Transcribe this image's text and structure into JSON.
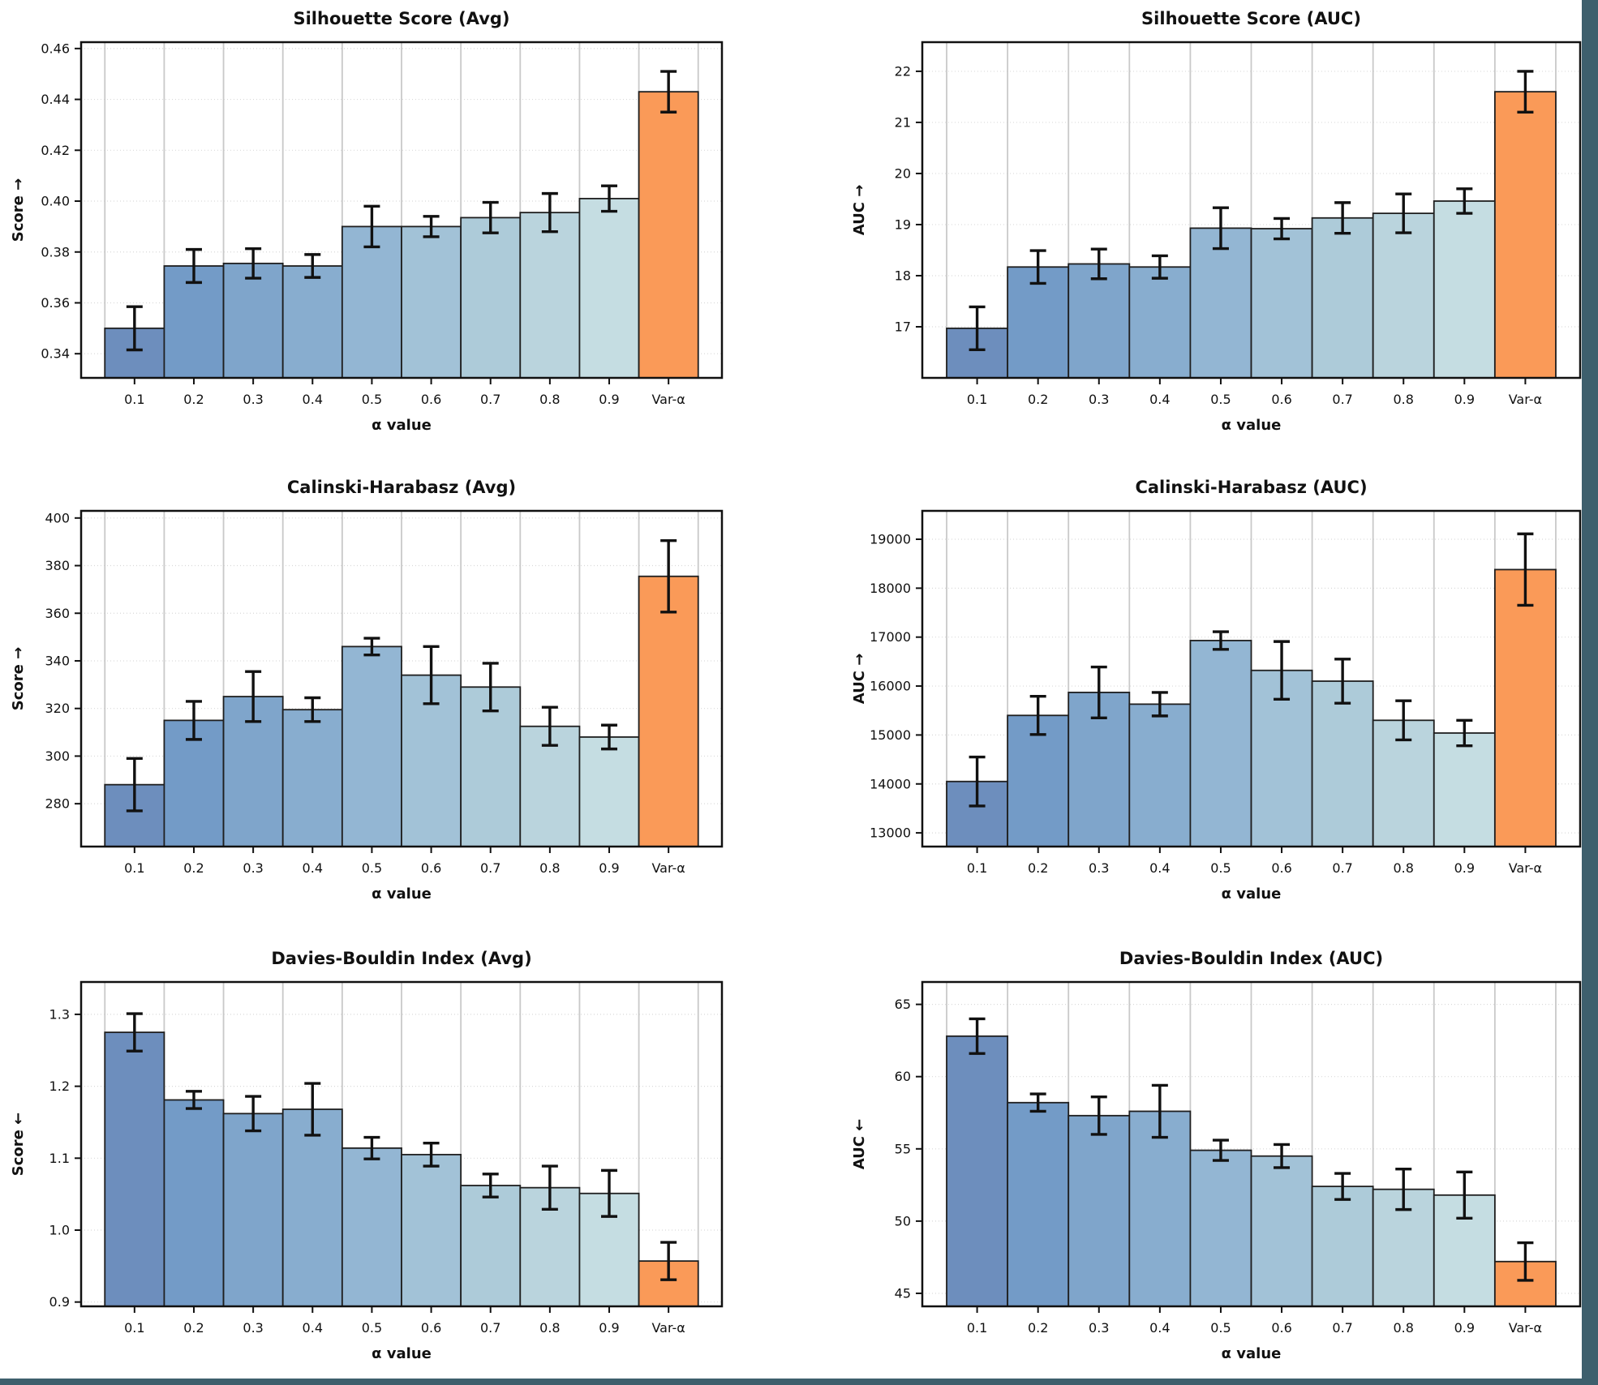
{
  "figure_title": "",
  "colors": {
    "background": "#ffffff",
    "frame": "#3e5f6d",
    "bar_palette": [
      "#6d8ebd",
      "#739bc7",
      "#7fa5cb",
      "#88adcf",
      "#93b6d3",
      "#a2c2d7",
      "#adcbd9",
      "#bad4dd",
      "#c5dde2"
    ],
    "highlight": "#fa9a58",
    "bar_edge": "#1f1f1f",
    "spine": "#111111",
    "grid_vertical": "#c9c9c9",
    "grid_horizontal": "#d9d9d9",
    "error_bar": "#111111",
    "text": "#111111"
  },
  "chart_data": [
    {
      "id": "silhouette-avg",
      "type": "bar",
      "title": "Silhouette Score (Avg)",
      "xlabel": "α value",
      "ylabel": "Score ↑",
      "legend_position": "none",
      "grid": true,
      "categories": [
        "0.1",
        "0.2",
        "0.3",
        "0.4",
        "0.5",
        "0.6",
        "0.7",
        "0.8",
        "0.9",
        "Var-α"
      ],
      "values": [
        0.35,
        0.3745,
        0.3755,
        0.3745,
        0.39,
        0.39,
        0.3935,
        0.3955,
        0.401,
        0.443
      ],
      "errors": [
        0.0085,
        0.0065,
        0.0058,
        0.0045,
        0.008,
        0.004,
        0.006,
        0.0075,
        0.005,
        0.008
      ],
      "highlight_index": 9,
      "ylim": [
        0.3305,
        0.4625
      ],
      "ytick_values": [
        0.34,
        0.36,
        0.38,
        0.4,
        0.42,
        0.44,
        0.46
      ],
      "ytick_labels": [
        "0.34",
        "0.36",
        "0.38",
        "0.40",
        "0.42",
        "0.44",
        "0.46"
      ]
    },
    {
      "id": "silhouette-auc",
      "type": "bar",
      "title": "Silhouette Score (AUC)",
      "xlabel": "α value",
      "ylabel": "AUC ↑",
      "legend_position": "none",
      "grid": true,
      "categories": [
        "0.1",
        "0.2",
        "0.3",
        "0.4",
        "0.5",
        "0.6",
        "0.7",
        "0.8",
        "0.9",
        "Var-α"
      ],
      "values": [
        16.97,
        18.17,
        18.23,
        18.17,
        18.93,
        18.92,
        19.13,
        19.22,
        19.46,
        21.6
      ],
      "errors": [
        0.42,
        0.32,
        0.29,
        0.22,
        0.4,
        0.2,
        0.3,
        0.38,
        0.24,
        0.4
      ],
      "highlight_index": 9,
      "ylim": [
        16.0,
        22.57
      ],
      "ytick_values": [
        17,
        18,
        19,
        20,
        21,
        22
      ],
      "ytick_labels": [
        "17",
        "18",
        "19",
        "20",
        "21",
        "22"
      ]
    },
    {
      "id": "calinski-harabasz-avg",
      "type": "bar",
      "title": "Calinski-Harabasz (Avg)",
      "xlabel": "α value",
      "ylabel": "Score ↑",
      "legend_position": "none",
      "grid": true,
      "categories": [
        "0.1",
        "0.2",
        "0.3",
        "0.4",
        "0.5",
        "0.6",
        "0.7",
        "0.8",
        "0.9",
        "Var-α"
      ],
      "values": [
        288,
        315,
        325,
        319.5,
        346,
        334,
        329,
        312.5,
        308,
        375.5
      ],
      "errors": [
        11,
        8,
        10.5,
        5,
        3.5,
        12,
        10,
        8,
        5,
        15
      ],
      "highlight_index": 9,
      "ylim": [
        262,
        403
      ],
      "ytick_values": [
        280,
        300,
        320,
        340,
        360,
        380,
        400
      ],
      "ytick_labels": [
        "280",
        "300",
        "320",
        "340",
        "360",
        "380",
        "400"
      ]
    },
    {
      "id": "calinski-harabasz-auc",
      "type": "bar",
      "title": "Calinski-Harabasz (AUC)",
      "xlabel": "α value",
      "ylabel": "AUC ↑",
      "legend_position": "none",
      "grid": true,
      "categories": [
        "0.1",
        "0.2",
        "0.3",
        "0.4",
        "0.5",
        "0.6",
        "0.7",
        "0.8",
        "0.9",
        "Var-α"
      ],
      "values": [
        14050,
        15400,
        15870,
        15630,
        16930,
        16320,
        16100,
        15300,
        15040,
        18380
      ],
      "errors": [
        500,
        390,
        520,
        240,
        180,
        590,
        450,
        400,
        260,
        730
      ],
      "highlight_index": 9,
      "ylim": [
        12720,
        19580
      ],
      "ytick_values": [
        13000,
        14000,
        15000,
        16000,
        17000,
        18000,
        19000
      ],
      "ytick_labels": [
        "13000",
        "14000",
        "15000",
        "16000",
        "17000",
        "18000",
        "19000"
      ]
    },
    {
      "id": "davies-bouldin-avg",
      "type": "bar",
      "title": "Davies-Bouldin Index (Avg)",
      "xlabel": "α value",
      "ylabel": "Score ↓",
      "legend_position": "none",
      "grid": true,
      "categories": [
        "0.1",
        "0.2",
        "0.3",
        "0.4",
        "0.5",
        "0.6",
        "0.7",
        "0.8",
        "0.9",
        "Var-α"
      ],
      "values": [
        1.275,
        1.181,
        1.162,
        1.168,
        1.114,
        1.105,
        1.062,
        1.059,
        1.051,
        0.957
      ],
      "errors": [
        0.026,
        0.012,
        0.024,
        0.036,
        0.015,
        0.016,
        0.016,
        0.03,
        0.032,
        0.026
      ],
      "highlight_index": 9,
      "ylim": [
        0.894,
        1.345
      ],
      "ytick_values": [
        0.9,
        1.0,
        1.1,
        1.2,
        1.3
      ],
      "ytick_labels": [
        "0.9",
        "1.0",
        "1.1",
        "1.2",
        "1.3"
      ]
    },
    {
      "id": "davies-bouldin-auc",
      "type": "bar",
      "title": "Davies-Bouldin Index (AUC)",
      "xlabel": "α value",
      "ylabel": "AUC ↓",
      "legend_position": "none",
      "grid": true,
      "categories": [
        "0.1",
        "0.2",
        "0.3",
        "0.4",
        "0.5",
        "0.6",
        "0.7",
        "0.8",
        "0.9",
        "Var-α"
      ],
      "values": [
        62.8,
        58.2,
        57.3,
        57.6,
        54.9,
        54.5,
        52.4,
        52.2,
        51.8,
        47.2
      ],
      "errors": [
        1.2,
        0.6,
        1.3,
        1.8,
        0.7,
        0.8,
        0.9,
        1.4,
        1.6,
        1.3
      ],
      "highlight_index": 9,
      "ylim": [
        44.1,
        66.55
      ],
      "ytick_values": [
        45,
        50,
        55,
        60,
        65
      ],
      "ytick_labels": [
        "45",
        "50",
        "55",
        "60",
        "65"
      ]
    }
  ]
}
